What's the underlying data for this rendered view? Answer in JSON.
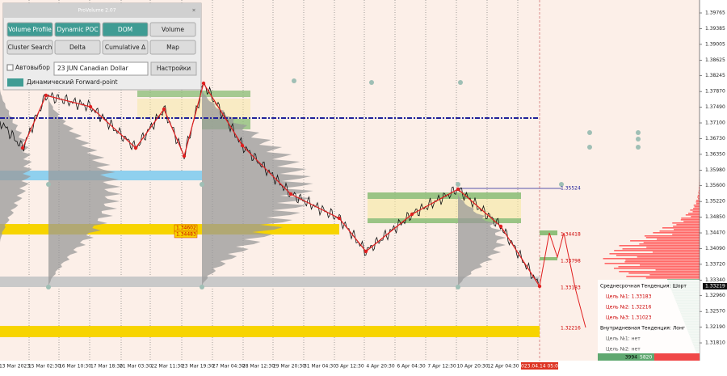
{
  "panel": {
    "title": "ProVolume 2.07",
    "buttons": [
      "Volume Profile",
      "Dynamic POC",
      "DOM",
      "Volume",
      "Cluster Search",
      "Delta",
      "Cumulative Δ",
      "Map"
    ],
    "checkbox": "Автовыбор",
    "instrument": "23 JUN Canadian Dollar",
    "settings": "Настройки",
    "forward": "Динамический Forward-point"
  },
  "price_axis": [
    "1.39765",
    "1.39385",
    "1.39005",
    "1.38625",
    "1.38245",
    "1.37870",
    "1.37490",
    "1.37100",
    "1.36730",
    "1.36350",
    "1.35980",
    "1.35600",
    "1.35220",
    "1.34850",
    "1.34470",
    "1.34090",
    "1.33720",
    "1.33340",
    "1.32960",
    "1.32570",
    "1.32190",
    "1.31810"
  ],
  "current_price": "1.33219",
  "time_axis": [
    "13 Mar 2023",
    "15 Mar 02:30",
    "16 Mar 10:30",
    "17 Mar 18:30",
    "21 Mar 03:30",
    "22 Mar 11:30",
    "23 Mar 19:30",
    "27 Mar 04:30",
    "28 Mar 12:30",
    "29 Mar 20:30",
    "31 Mar 04:30",
    "3 Apr 12:30",
    "4 Apr 20:30",
    "6 Apr 04:30",
    "7 Apr 12:30",
    "10 Apr 20:30",
    "12 Apr 04:30"
  ],
  "current_time": "2023.04.14 05:00",
  "levels": [
    "1.34602",
    "1.34483",
    "1.35524",
    "1.34418",
    "1.33798",
    "1.33183",
    "1.32216"
  ],
  "trend": {
    "medium": "Среднесрочная Тенденция: Шорт",
    "medium_targets": [
      "Цель №1: 1.33183",
      "Цель №2: 1.32216",
      "Цель №3: 1.31023"
    ],
    "intraday": "Внутридневная Тенденция: Лонг",
    "intraday_targets": [
      "Цель №1: нет",
      "Цель №2: нет"
    ],
    "buy": "3994",
    "sell": "5820"
  }
}
